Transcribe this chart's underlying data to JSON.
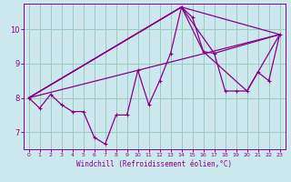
{
  "xlabel": "Windchill (Refroidissement éolien,°C)",
  "background_color": "#cce8ee",
  "grid_color": "#99ccbb",
  "line_color": "#880088",
  "xlim": [
    -0.5,
    23.5
  ],
  "ylim": [
    6.5,
    10.75
  ],
  "yticks": [
    7,
    8,
    9,
    10
  ],
  "xticks": [
    0,
    1,
    2,
    3,
    4,
    5,
    6,
    7,
    8,
    9,
    10,
    11,
    12,
    13,
    14,
    15,
    16,
    17,
    18,
    19,
    20,
    21,
    22,
    23
  ],
  "line1_x": [
    0,
    1,
    2,
    3,
    4,
    5,
    6,
    7,
    8,
    9,
    10,
    11,
    12,
    13,
    14,
    15,
    16,
    17,
    18,
    19,
    20,
    21,
    22,
    23
  ],
  "line1_y": [
    8.0,
    7.7,
    8.1,
    7.8,
    7.6,
    7.6,
    6.85,
    6.65,
    7.5,
    7.5,
    8.8,
    7.8,
    8.5,
    9.3,
    10.65,
    10.35,
    9.35,
    9.3,
    8.2,
    8.2,
    8.2,
    8.75,
    8.5,
    9.85
  ],
  "line2_x": [
    0,
    14,
    23
  ],
  "line2_y": [
    8.0,
    10.65,
    9.85
  ],
  "line3_x": [
    0,
    14,
    17,
    23
  ],
  "line3_y": [
    8.0,
    10.65,
    9.3,
    9.85
  ],
  "line4_x": [
    0,
    23
  ],
  "line4_y": [
    8.0,
    9.85
  ],
  "line5_x": [
    0,
    14,
    16,
    20,
    23
  ],
  "line5_y": [
    8.0,
    10.65,
    9.35,
    8.2,
    9.85
  ]
}
